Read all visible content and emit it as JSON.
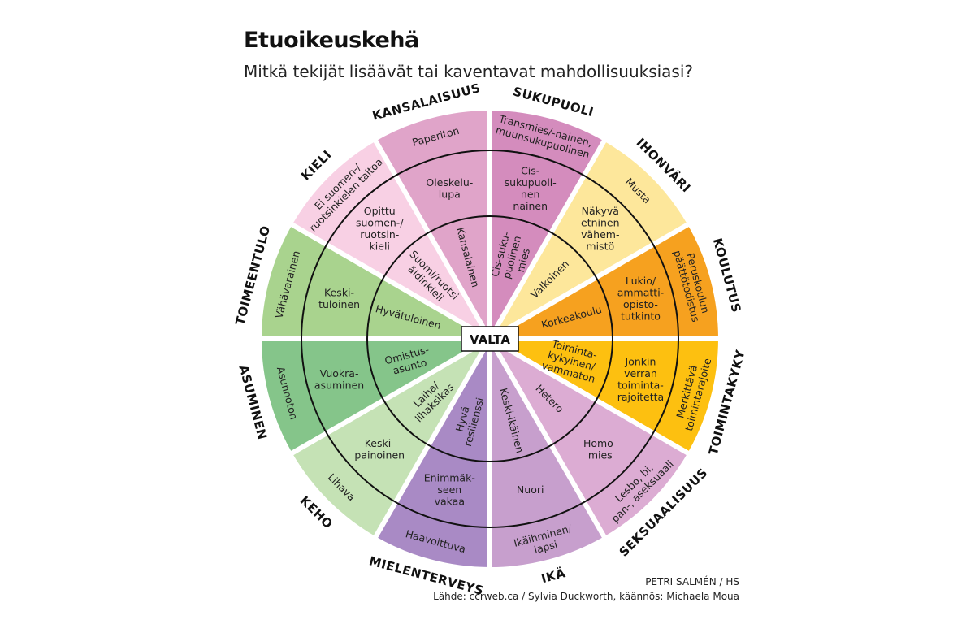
{
  "title": "Etuoikeuskehä",
  "subtitle": "Mitkä tekijät lisäävät tai kaventavat mahdollisuuksiasi?",
  "center_label": "VALTA",
  "credit": "PETRI SALMÉN / HS",
  "source": "Lähde: ccrweb.ca / Sylvia Duckworth, käännös: Michaela Moua",
  "sectors": [
    {
      "category": "SUKUPUOLI",
      "color": "#d48cbd",
      "outer": [
        "Transmies/-nainen,",
        "muunsukupuolinen"
      ],
      "middle": [
        "Cis-",
        "sukupuoli-",
        "nen",
        "nainen"
      ],
      "inner": [
        "Cis-suku-",
        "puolinen",
        "mies"
      ]
    },
    {
      "category": "IHONVÄRI",
      "color": "#fde79b",
      "outer": [
        "Musta"
      ],
      "middle": [
        "Näkyvä",
        "etninen",
        "vähem-",
        "mistö"
      ],
      "inner": [
        "Valkoinen"
      ]
    },
    {
      "category": "KOULUTUS",
      "color": "#f6a11f",
      "outer": [
        "Peruskoulun",
        "päättötodistus"
      ],
      "middle": [
        "Lukio/",
        "ammatti-",
        "opisto-",
        "tutkinto"
      ],
      "inner": [
        "Korkeakoulu"
      ]
    },
    {
      "category": "TOIMINTAKYKY",
      "color": "#fdc010",
      "outer": [
        "Merkittävä",
        "toimintarajoite"
      ],
      "middle": [
        "Jonkin",
        "verran",
        "toiminta-",
        "rajoitetta"
      ],
      "inner": [
        "Toiminta-",
        "kykyinen/",
        "vammaton"
      ]
    },
    {
      "category": "SEKSUAALISUUS",
      "color": "#dcacd3",
      "outer": [
        "Lesbo, bi,",
        "pan-, aseksuaali"
      ],
      "middle": [
        "Homo-",
        "mies"
      ],
      "inner": [
        "Hetero"
      ]
    },
    {
      "category": "IKÄ",
      "color": "#c79fcd",
      "outer": [
        "Ikäihminen/",
        "lapsi"
      ],
      "middle": [
        "Nuori"
      ],
      "inner": [
        "Keski-ikäinen"
      ]
    },
    {
      "category": "MIELENTERVEYS",
      "color": "#a98ac5",
      "outer": [
        "Haavoittuva"
      ],
      "middle": [
        "Enimmäk-",
        "seen",
        "vakaa"
      ],
      "inner": [
        "Hyvä",
        "resilienssi"
      ]
    },
    {
      "category": "KEHO",
      "color": "#c5e2b5",
      "outer": [
        "Lihava"
      ],
      "middle": [
        "Keski-",
        "painoinen"
      ],
      "inner": [
        "Laiha/",
        "lihaksikas"
      ]
    },
    {
      "category": "ASUMINEN",
      "color": "#85c58a",
      "outer": [
        "Asunnoton"
      ],
      "middle": [
        "Vuokra-",
        "asuminen"
      ],
      "inner": [
        "Omistus-",
        "asunto"
      ]
    },
    {
      "category": "TOIMEENTULO",
      "color": "#a9d38e",
      "outer": [
        "Vähävarainen"
      ],
      "middle": [
        "Keski-",
        "tuloinen"
      ],
      "inner": [
        "Hyvätuloinen"
      ]
    },
    {
      "category": "KIELI",
      "color": "#f8d0e4",
      "outer": [
        "Ei suomen-/",
        "ruotsinkielen taitoa"
      ],
      "middle": [
        "Opittu",
        "suomen-/",
        "ruotsin-",
        "kieli"
      ],
      "inner": [
        "Suomi/ruotsi",
        "äidinkieli"
      ]
    },
    {
      "category": "KANSALAISUUS",
      "color": "#e0a4c9",
      "outer": [
        "Paperiton"
      ],
      "middle": [
        "Oleskelu-",
        "lupa"
      ],
      "inner": [
        "Kansalainen"
      ]
    }
  ]
}
